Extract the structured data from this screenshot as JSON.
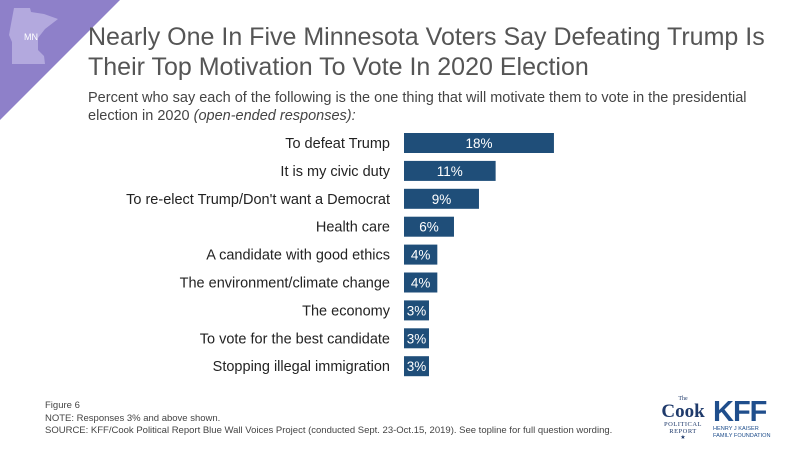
{
  "badge": {
    "text": "MN"
  },
  "header": {
    "title": "Nearly One In Five Minnesota Voters Say Defeating Trump Is Their Top Motivation To Vote In 2020 Election",
    "subtitle_main": "Percent who say each of the following is the one thing that will motivate them to vote in the presidential election in 2020",
    "subtitle_note": "(open-ended responses):"
  },
  "chart_data": {
    "type": "bar",
    "orientation": "horizontal",
    "categories": [
      "To defeat Trump",
      "It is my civic duty",
      "To re-elect Trump/Don't want a Democrat",
      "Health care",
      "A candidate with good ethics",
      "The environment/climate change",
      "The economy",
      "To vote for the best candidate",
      "Stopping illegal immigration"
    ],
    "values": [
      18,
      11,
      9,
      6,
      4,
      4,
      3,
      3,
      3
    ],
    "value_labels": [
      "18%",
      "11%",
      "9%",
      "6%",
      "4%",
      "4%",
      "3%",
      "3%",
      "3%"
    ],
    "unit": "%",
    "bar_color": "#1f4e79",
    "background_color": "#ffffff",
    "grid": false,
    "legend": "none"
  },
  "footer": {
    "figure": "Figure 6",
    "note": "NOTE: Responses 3% and above shown.",
    "source": "SOURCE: KFF/Cook Political Report Blue Wall Voices Project (conducted Sept. 23-Oct.15, 2019). See topline for full question wording."
  },
  "logos": {
    "cook_the": "The",
    "cook_name": "Cook",
    "cook_line1": "POLITICAL",
    "cook_line2": "REPORT",
    "kff_name": "KFF",
    "kff_line1": "HENRY J KAISER",
    "kff_line2": "FAMILY FOUNDATION"
  },
  "colors": {
    "corner": "#8e80c9",
    "map_shape": "#b3a9de",
    "title_text": "#555555",
    "logo_blue": "#1f3a6b"
  }
}
